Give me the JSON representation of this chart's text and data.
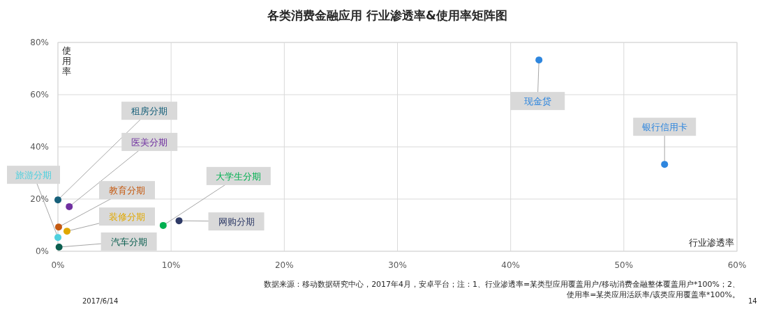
{
  "chart_data": {
    "type": "scatter",
    "title": "各类消费金融应用 行业渗透率&使用率矩阵图",
    "xlabel": "行业渗透率",
    "ylabel": "使用率",
    "x": [
      0.0,
      1.0,
      0.0,
      0.06,
      0.8,
      0.1,
      9.3,
      10.7,
      42.5,
      53.6
    ],
    "values": [
      19.7,
      17.1,
      5.3,
      9.3,
      7.7,
      1.6,
      9.9,
      11.7,
      73.3,
      33.3
    ],
    "colors": [
      "#17607a",
      "#7030a0",
      "#4fd0de",
      "#c55a11",
      "#e0a800",
      "#0b5e4f",
      "#00b050",
      "#2e3a66",
      "#2e86de",
      "#2e86de"
    ],
    "xlim": [
      0,
      60
    ],
    "ylim": [
      0,
      80
    ],
    "xticks": [
      {
        "value": 0,
        "label": "0%"
      },
      {
        "value": 10,
        "label": "10%"
      },
      {
        "value": 20,
        "label": "20%"
      },
      {
        "value": 30,
        "label": "30%"
      },
      {
        "value": 40,
        "label": "40%"
      },
      {
        "value": 50,
        "label": "50%"
      },
      {
        "value": 60,
        "label": "60%"
      }
    ],
    "yticks": [
      {
        "value": 0,
        "label": "0%"
      },
      {
        "value": 20,
        "label": "20%"
      },
      {
        "value": 40,
        "label": "40%"
      },
      {
        "value": 60,
        "label": "60%"
      },
      {
        "value": 80,
        "label": "80%"
      }
    ],
    "grid": true,
    "marker": "circle",
    "annotations": [
      {
        "text": "租房分期",
        "x": 0.0,
        "y": 19.7
      },
      {
        "text": "医美分期",
        "x": 1.0,
        "y": 17.1
      },
      {
        "text": "旅游分期",
        "x": 0.0,
        "y": 5.3
      },
      {
        "text": "教育分期",
        "x": 0.06,
        "y": 9.3
      },
      {
        "text": "装修分期",
        "x": 0.8,
        "y": 7.7
      },
      {
        "text": "汽车分期",
        "x": 0.1,
        "y": 1.6
      },
      {
        "text": "大学生分期",
        "x": 9.3,
        "y": 9.9
      },
      {
        "text": "网购分期",
        "x": 10.7,
        "y": 11.7
      },
      {
        "text": "现金贷",
        "x": 42.5,
        "y": 73.3
      },
      {
        "text": "银行信用卡",
        "x": 53.6,
        "y": 33.3
      },
      "数据来源：移动数据研究中心，2017年4月，安卓平台；注：1、行业渗透率=某类型应用覆盖用户/移动消费金融整体覆盖用户*100%；2、",
      "使用率=某类应用活跃率/该类应用覆盖率*100%。",
      "2017/6/14",
      "14"
    ]
  }
}
